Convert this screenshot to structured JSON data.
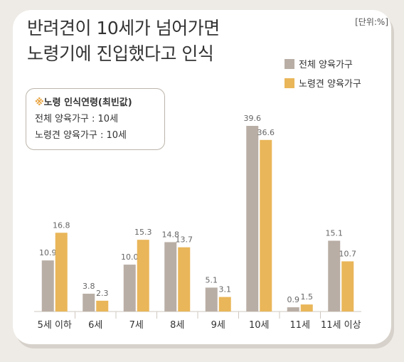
{
  "title_line1": "반려견이 10세가 넘어가면",
  "title_line2": "노령기에 진입했다고 인식",
  "unit_label": "[단위:%]",
  "callout": {
    "mark": "※",
    "title": "노령 인식연령(최빈값)",
    "line1": "전체 양육가구 : 10세",
    "line2": "노령견 양육가구 : 10세"
  },
  "colors": {
    "all": "#b9aea5",
    "senior": "#e9b659",
    "axis": "#cfc8c0"
  },
  "chart_data": {
    "type": "bar",
    "categories": [
      "5세 이하",
      "6세",
      "7세",
      "8세",
      "9세",
      "10세",
      "11세",
      "11세 이상"
    ],
    "series": [
      {
        "name": "전체 양육가구",
        "values": [
          10.9,
          3.8,
          10.0,
          14.8,
          5.1,
          39.6,
          0.9,
          15.1
        ]
      },
      {
        "name": "노령견 양육가구",
        "values": [
          16.8,
          2.3,
          15.3,
          13.7,
          3.1,
          36.6,
          1.5,
          10.7
        ]
      }
    ],
    "value_labels": [
      [
        "10.9",
        "3.8",
        "10.0",
        "14.8",
        "5.1",
        "39.6",
        "0.9",
        "15.1"
      ],
      [
        "16.8",
        "2.3",
        "15.3",
        "13.7",
        "3.1",
        "36.6",
        "1.5",
        "10.7"
      ]
    ],
    "ylim": [
      0,
      40
    ],
    "grid": false,
    "legend_position": "top-right"
  }
}
